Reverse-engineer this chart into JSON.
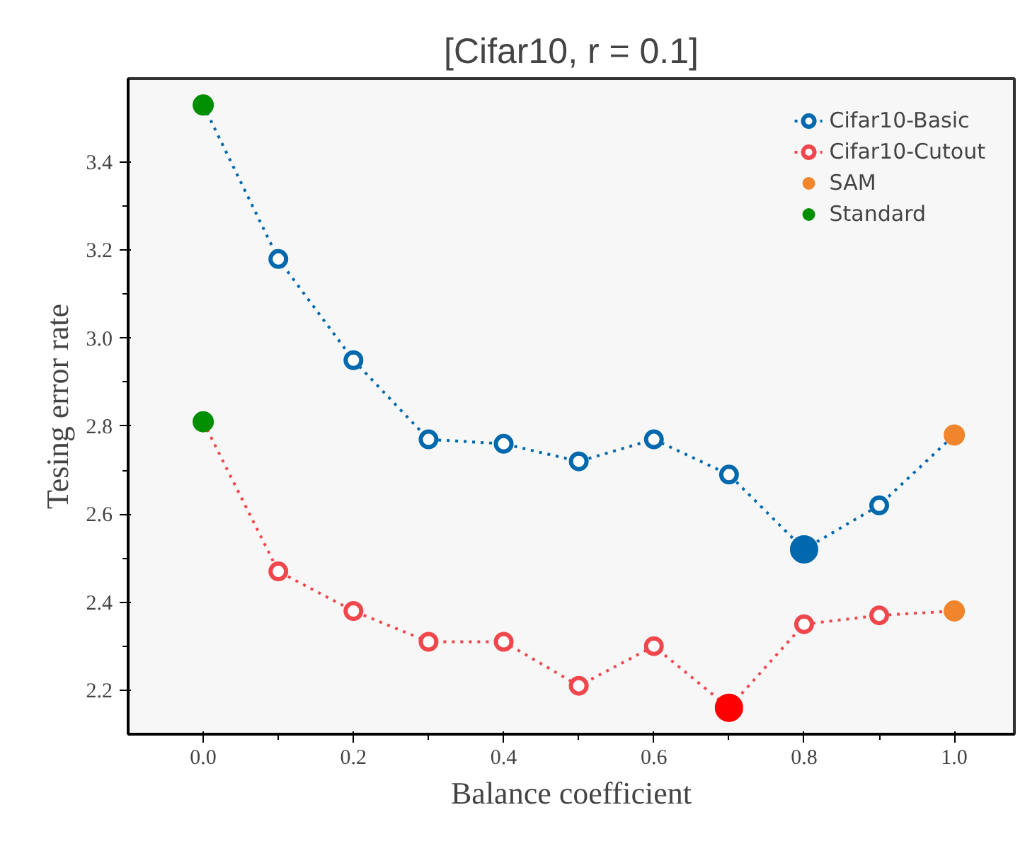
{
  "chart_data": {
    "type": "line",
    "title": "[Cifar10, r = 0.1]",
    "xlabel": "Balance coefficient",
    "ylabel": "Tesing error rate",
    "x": [
      0.0,
      0.1,
      0.2,
      0.3,
      0.4,
      0.5,
      0.6,
      0.7,
      0.8,
      0.9,
      1.0
    ],
    "series": [
      {
        "name": "Cifar10-Basic",
        "color": "#0068ac",
        "values": [
          3.53,
          3.18,
          2.95,
          2.77,
          2.76,
          2.72,
          2.77,
          2.69,
          2.52,
          2.62,
          2.78
        ]
      },
      {
        "name": "Cifar10-Cutout",
        "color": "#f0474c",
        "values": [
          2.81,
          2.47,
          2.38,
          2.31,
          2.31,
          2.21,
          2.3,
          2.16,
          2.35,
          2.37,
          2.38
        ]
      },
      {
        "name": "SAM",
        "type": "scatter",
        "color": "#f0852d",
        "x": [
          1.0,
          1.0
        ],
        "values": [
          2.78,
          2.38
        ]
      },
      {
        "name": "Standard",
        "type": "scatter",
        "color": "#008f00",
        "x": [
          0.0,
          0.0
        ],
        "values": [
          3.53,
          2.81
        ]
      },
      {
        "type": "scatter",
        "color": "#0068ac",
        "x": [
          0.8
        ],
        "values": [
          2.52
        ]
      },
      {
        "type": "scatter",
        "color": "#ff0000",
        "x": [
          0.7
        ],
        "values": [
          2.16
        ]
      }
    ],
    "xlim": [
      -0.1,
      1.08
    ],
    "xticks": [
      {
        "value": 0.0,
        "label": "0.0"
      },
      0.2,
      0.4,
      0.6,
      0.8,
      {
        "value": 1.0,
        "label": "1.0"
      }
    ],
    "ylim": [
      2.1,
      3.59
    ],
    "yticks": [
      2.2,
      2.4,
      2.6,
      2.8,
      {
        "value": 3.0,
        "label": "3.0"
      },
      3.2,
      3.4
    ],
    "marker": "circle",
    "line_style": "dotted",
    "grid": false,
    "legend": "top right"
  }
}
